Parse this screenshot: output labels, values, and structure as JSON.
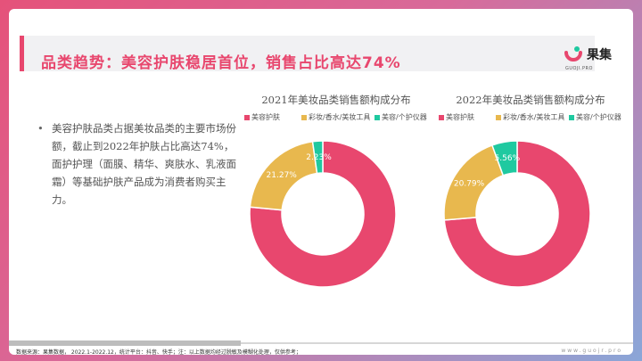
{
  "header": {
    "title": "品类趋势：美容护肤稳居首位，销售占比高达74%",
    "logo_text": "果集",
    "logo_sub": "GUOJI.PRO"
  },
  "bullet": {
    "text": "美容护肤品类占据美妆品类的主要市场份额，截止到2022年护肤占比高达74%，面护护理（面膜、精华、爽肤水、乳液面霜）等基础护肤产品成为消费者购买主力。"
  },
  "colors": {
    "skin": "#e8476e",
    "makeup": "#e8b84e",
    "device": "#1fc9a0",
    "accent": "#e8476e"
  },
  "chart_data": [
    {
      "type": "pie",
      "title": "2021年美妆品类销售额构成分布",
      "legend_position": "top",
      "slices": [
        {
          "label": "美容护肤",
          "value": 76.5,
          "display": "76.50%"
        },
        {
          "label": "彩妆/香水/美妆工具",
          "value": 21.27,
          "display": "21.27%"
        },
        {
          "label": "美容/个护仪器",
          "value": 2.23,
          "display": "2.23%"
        }
      ]
    },
    {
      "type": "pie",
      "title": "2022年美妆品类销售额构成分布",
      "legend_position": "top",
      "slices": [
        {
          "label": "美容护肤",
          "value": 73.66,
          "display": "73.66%"
        },
        {
          "label": "彩妆/香水/美妆工具",
          "value": 20.79,
          "display": "20.79%"
        },
        {
          "label": "美容/个护仪器",
          "value": 5.56,
          "display": "5.56%"
        }
      ]
    }
  ],
  "footer": {
    "source": "数据来源：果集数据，  2022.1-2022.12，统计平台：抖音、快手；注：以上数据均经过脱敏及模糊化处理，仅供参考；",
    "site": "www.guojr.pro"
  }
}
